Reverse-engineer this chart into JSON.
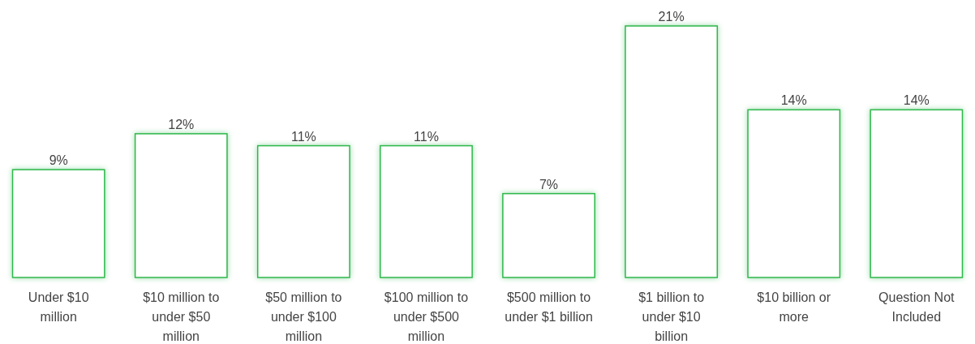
{
  "chart_data": {
    "type": "bar",
    "categories": [
      "Under $10 million",
      "$10 million to under $50 million",
      "$50 million to under $100 million",
      "$100 million to under $500 million",
      "$500 million to under $1 billion",
      "$1 billion to under $10 billion",
      "$10 billion or more",
      "Question Not Included"
    ],
    "values": [
      9,
      12,
      11,
      11,
      7,
      21,
      14,
      14
    ],
    "color": "#2eb84b",
    "value_labels": [
      "9%",
      "12%",
      "11%",
      "11%",
      "7%",
      "21%",
      "14%",
      "14%"
    ]
  }
}
